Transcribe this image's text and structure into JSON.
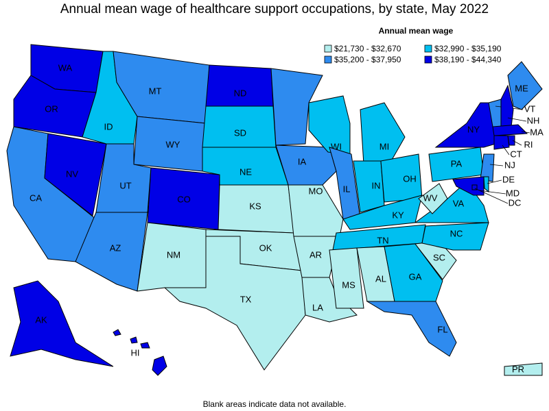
{
  "title": "Annual mean wage of healthcare support occupations, by state, May 2022",
  "legend": {
    "title": "Annual mean wage",
    "bins": [
      {
        "label": "$21,730 - $32,670",
        "color": "#b3eeee"
      },
      {
        "label": "$32,990 - $35,190",
        "color": "#00bff0"
      },
      {
        "label": "$35,200 - $37,950",
        "color": "#2e8bef"
      },
      {
        "label": "$38,190 - $44,340",
        "color": "#0000e6"
      }
    ]
  },
  "states": [
    {
      "label": "WA",
      "bin": 3
    },
    {
      "label": "OR",
      "bin": 3
    },
    {
      "label": "CA",
      "bin": 2
    },
    {
      "label": "NV",
      "bin": 3
    },
    {
      "label": "ID",
      "bin": 1
    },
    {
      "label": "MT",
      "bin": 2
    },
    {
      "label": "WY",
      "bin": 2
    },
    {
      "label": "UT",
      "bin": 2
    },
    {
      "label": "AZ",
      "bin": 2
    },
    {
      "label": "CO",
      "bin": 3
    },
    {
      "label": "NM",
      "bin": 0
    },
    {
      "label": "ND",
      "bin": 3
    },
    {
      "label": "SD",
      "bin": 1
    },
    {
      "label": "NE",
      "bin": 1
    },
    {
      "label": "KS",
      "bin": 0
    },
    {
      "label": "OK",
      "bin": 0
    },
    {
      "label": "TX",
      "bin": 0
    },
    {
      "label": "MN",
      "bin": 2
    },
    {
      "label": "IA",
      "bin": 2
    },
    {
      "label": "MO",
      "bin": 0
    },
    {
      "label": "AR",
      "bin": 0
    },
    {
      "label": "LA",
      "bin": 0
    },
    {
      "label": "WI",
      "bin": 1
    },
    {
      "label": "IL",
      "bin": 2
    },
    {
      "label": "MI",
      "bin": 1
    },
    {
      "label": "IN",
      "bin": 1
    },
    {
      "label": "OH",
      "bin": 1
    },
    {
      "label": "KY",
      "bin": 1
    },
    {
      "label": "TN",
      "bin": 1
    },
    {
      "label": "MS",
      "bin": 0
    },
    {
      "label": "AL",
      "bin": 0
    },
    {
      "label": "GA",
      "bin": 1
    },
    {
      "label": "FL",
      "bin": 2
    },
    {
      "label": "SC",
      "bin": 0
    },
    {
      "label": "NC",
      "bin": 1
    },
    {
      "label": "VA",
      "bin": 1
    },
    {
      "label": "WV",
      "bin": 0
    },
    {
      "label": "PA",
      "bin": 1
    },
    {
      "label": "NY",
      "bin": 3
    },
    {
      "label": "NJ",
      "bin": 2
    },
    {
      "label": "DE",
      "bin": 1
    },
    {
      "label": "MD",
      "bin": 3
    },
    {
      "label": "DC",
      "bin": 3
    },
    {
      "label": "ME",
      "bin": 2
    },
    {
      "label": "VT",
      "bin": 2
    },
    {
      "label": "NH",
      "bin": 3
    },
    {
      "label": "MA",
      "bin": 3
    },
    {
      "label": "CT",
      "bin": 3
    },
    {
      "label": "RI",
      "bin": 3
    },
    {
      "label": "AK",
      "bin": 3
    },
    {
      "label": "HI",
      "bin": 3
    },
    {
      "label": "PR",
      "bin": 0
    }
  ],
  "footnote": "Blank areas indicate data not available."
}
